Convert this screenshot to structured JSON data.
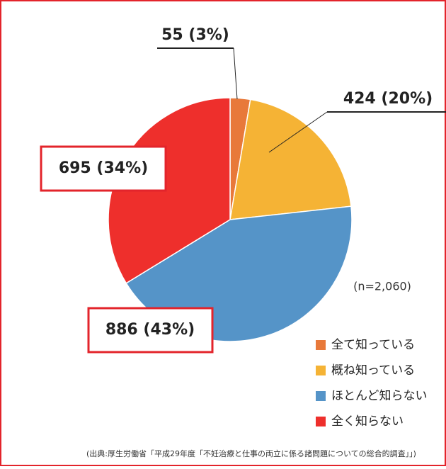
{
  "chart_data": {
    "type": "pie",
    "categories": [
      "全て知っている",
      "概ね知っている",
      "ほとんど知らない",
      "全く知らない"
    ],
    "values": [
      55,
      424,
      886,
      695
    ],
    "value_labels": [
      "55 (3%)",
      "424 (20%)",
      "886 (43%)",
      "695 (34%)"
    ],
    "colors": [
      "#e8793a",
      "#f5b335",
      "#5594c8",
      "#ee2f2c"
    ],
    "note": "(n=2,060)",
    "source": "(出典:厚生労働省「平成29年度「不妊治療と仕事の両立に係る諸問題についての総合的調査」」)",
    "legend": "bottom-right"
  }
}
